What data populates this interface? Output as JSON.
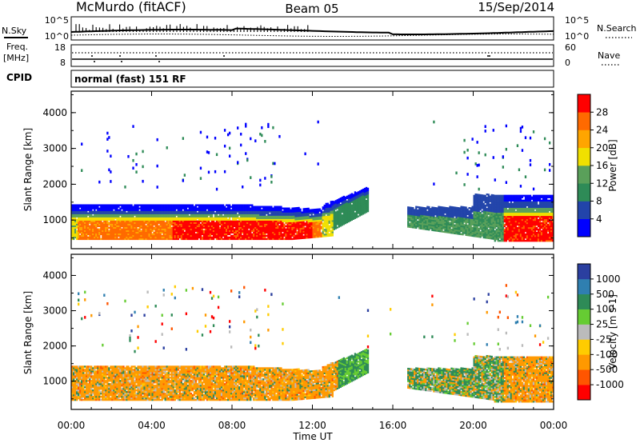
{
  "header": {
    "station": "McMurdo (fitACF)",
    "beam": "Beam 05",
    "date": "15/Sep/2014"
  },
  "noise_panel": {
    "left_label": "N.Sky",
    "right_label": "N.Search",
    "left_ticks": [
      "10^5",
      "10^0"
    ],
    "right_ticks": [
      "10^5",
      "10^0"
    ]
  },
  "freq_panel": {
    "left_label_top": "Freq.",
    "left_label_unit": "[MHz]",
    "left_ticks": [
      "18",
      "8"
    ],
    "right_label": "Nave",
    "right_ticks": [
      "60",
      "0"
    ]
  },
  "cpid": {
    "label": "CPID",
    "value": "normal (fast) 151 RF"
  },
  "colors": {
    "power": [
      "#0000ff",
      "#2244aa",
      "#2e8b57",
      "#5aa05a",
      "#f0e000",
      "#ffa500",
      "#ff6a00",
      "#ff0000"
    ],
    "velocity": [
      "#2b3fa0",
      "#2f7fb0",
      "#2e8b57",
      "#66cc33",
      "#bbbbbb",
      "#ffcc00",
      "#ff9900",
      "#ff5500",
      "#ff0000"
    ]
  },
  "chart_data": [
    {
      "type": "heatmap",
      "title": "",
      "xlabel": "",
      "ylabel": "Slant Range [km]",
      "ylim": [
        200,
        4600
      ],
      "yticks": [
        "1000",
        "2000",
        "3000",
        "4000"
      ],
      "xticks": [
        "00:00",
        "04:00",
        "08:00",
        "12:00",
        "16:00",
        "20:00",
        "00:00"
      ],
      "colorbar": {
        "label": "Power [dB]",
        "ticks": [
          "4",
          "8",
          "12",
          "16",
          "20",
          "24",
          "28"
        ]
      }
    },
    {
      "type": "heatmap",
      "title": "",
      "xlabel": "Time UT",
      "ylabel": "Slant Range [km]",
      "ylim": [
        200,
        4600
      ],
      "yticks": [
        "1000",
        "2000",
        "3000",
        "4000"
      ],
      "xticks": [
        "00:00",
        "04:00",
        "08:00",
        "12:00",
        "16:00",
        "20:00",
        "00:00"
      ],
      "colorbar": {
        "label": "Velocity [m s-1]",
        "ticks": [
          "1000",
          "500",
          "100",
          "25",
          "-25",
          "-100",
          "-500",
          "-1000"
        ]
      }
    }
  ]
}
